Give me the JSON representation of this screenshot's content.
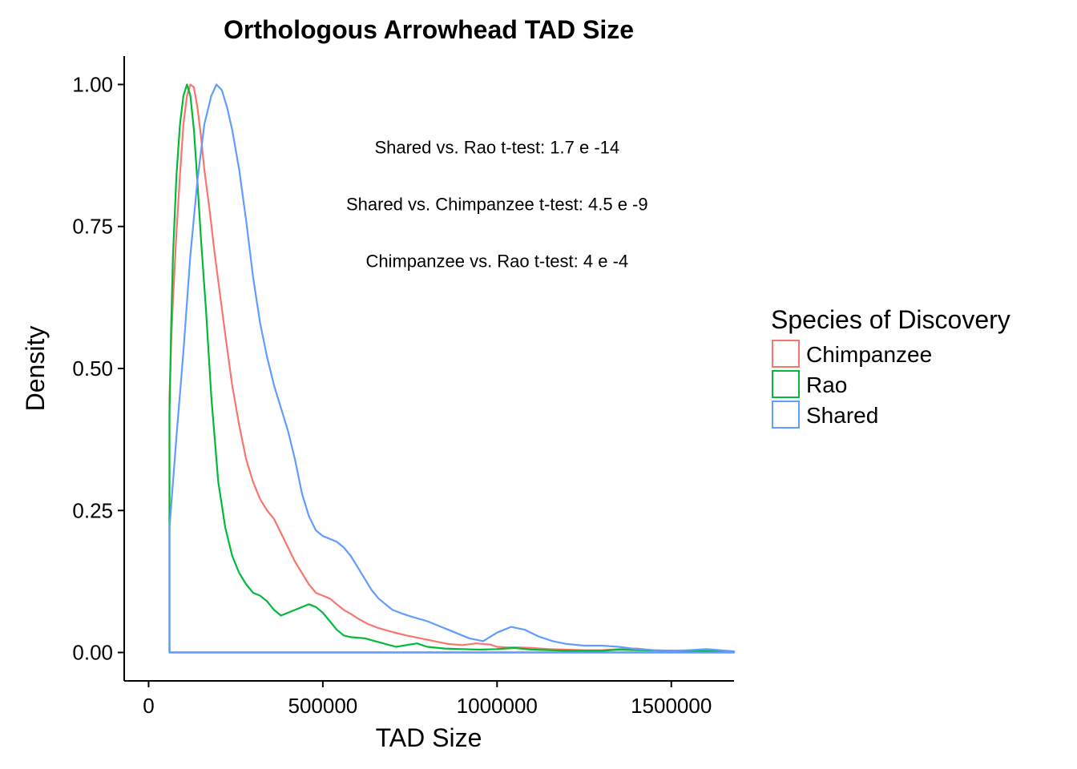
{
  "chart_data": {
    "type": "line",
    "title": "Orthologous Arrowhead TAD Size",
    "xlabel": "TAD Size",
    "ylabel": "Density",
    "xlim": [
      -70000,
      1680000
    ],
    "ylim": [
      -0.05,
      1.05
    ],
    "x_ticks": [
      0,
      500000,
      1000000,
      1500000
    ],
    "x_tick_labels": [
      "0",
      "500000",
      "1000000",
      "1500000"
    ],
    "y_ticks": [
      0,
      0.25,
      0.5,
      0.75,
      1.0
    ],
    "y_tick_labels": [
      "0.00",
      "0.25",
      "0.50",
      "0.75",
      "1.00"
    ],
    "grid": false,
    "legend": {
      "title": "Species of Discovery",
      "position": "right",
      "entries": [
        "Chimpanzee",
        "Rao",
        "Shared"
      ]
    },
    "annotations": [
      {
        "text": "Shared vs. Rao t-test: 1.7 e -14",
        "x": 1000000,
        "y": 0.89
      },
      {
        "text": "Shared vs. Chimpanzee t-test: 4.5 e -9",
        "x": 1000000,
        "y": 0.79
      },
      {
        "text": "Chimpanzee vs. Rao t-test: 4 e -4",
        "x": 1000000,
        "y": 0.69
      }
    ],
    "series": [
      {
        "name": "Chimpanzee",
        "color": "#F8766D",
        "x": [
          60000,
          65000,
          70000,
          80000,
          90000,
          100000,
          110000,
          120000,
          130000,
          140000,
          150000,
          160000,
          175000,
          190000,
          205000,
          220000,
          240000,
          260000,
          280000,
          300000,
          320000,
          340000,
          360000,
          380000,
          400000,
          420000,
          440000,
          460000,
          480000,
          500000,
          520000,
          540000,
          560000,
          580000,
          600000,
          630000,
          660000,
          700000,
          740000,
          780000,
          820000,
          860000,
          900000,
          940000,
          980000,
          1000000,
          1030000,
          1060000,
          1100000,
          1150000,
          1200000,
          1250000,
          1300000,
          1350000,
          1400000,
          1450000,
          1500000,
          1550000,
          1600000,
          1640000,
          1680000
        ],
        "y": [
          0.45,
          0.55,
          0.62,
          0.74,
          0.84,
          0.93,
          0.98,
          1.0,
          0.995,
          0.96,
          0.91,
          0.85,
          0.78,
          0.7,
          0.63,
          0.56,
          0.47,
          0.4,
          0.34,
          0.3,
          0.27,
          0.25,
          0.235,
          0.21,
          0.185,
          0.16,
          0.14,
          0.12,
          0.105,
          0.1,
          0.095,
          0.085,
          0.075,
          0.068,
          0.06,
          0.05,
          0.043,
          0.036,
          0.03,
          0.025,
          0.02,
          0.015,
          0.013,
          0.016,
          0.014,
          0.01,
          0.009,
          0.009,
          0.008,
          0.006,
          0.005,
          0.004,
          0.004,
          0.006,
          0.007,
          0.004,
          0.003,
          0.003,
          0.003,
          0.002,
          0.001
        ]
      },
      {
        "name": "Rao",
        "color": "#00BA38",
        "x": [
          60000,
          65000,
          70000,
          80000,
          90000,
          100000,
          110000,
          120000,
          130000,
          140000,
          150000,
          165000,
          180000,
          200000,
          220000,
          240000,
          260000,
          280000,
          300000,
          320000,
          340000,
          360000,
          380000,
          400000,
          420000,
          440000,
          460000,
          480000,
          500000,
          520000,
          540000,
          560000,
          580000,
          600000,
          620000,
          650000,
          680000,
          710000,
          740000,
          770000,
          800000,
          850000,
          900000,
          950000,
          1000000,
          1050000,
          1100000,
          1150000,
          1200000,
          1300000,
          1350000,
          1400000,
          1500000,
          1600000,
          1680000
        ],
        "y": [
          0.42,
          0.58,
          0.7,
          0.84,
          0.93,
          0.98,
          1.0,
          0.98,
          0.92,
          0.83,
          0.73,
          0.6,
          0.45,
          0.3,
          0.22,
          0.17,
          0.14,
          0.12,
          0.105,
          0.1,
          0.09,
          0.075,
          0.065,
          0.07,
          0.075,
          0.08,
          0.085,
          0.08,
          0.07,
          0.055,
          0.04,
          0.03,
          0.027,
          0.026,
          0.025,
          0.02,
          0.015,
          0.01,
          0.013,
          0.016,
          0.01,
          0.007,
          0.006,
          0.005,
          0.006,
          0.008,
          0.005,
          0.004,
          0.003,
          0.003,
          0.005,
          0.004,
          0.003,
          0.002,
          0.001
        ]
      },
      {
        "name": "Shared",
        "color": "#619CFF",
        "x": [
          60000,
          70000,
          80000,
          100000,
          120000,
          140000,
          160000,
          180000,
          195000,
          210000,
          225000,
          240000,
          260000,
          280000,
          300000,
          320000,
          340000,
          360000,
          380000,
          400000,
          420000,
          440000,
          460000,
          480000,
          500000,
          520000,
          540000,
          560000,
          580000,
          600000,
          620000,
          640000,
          660000,
          680000,
          700000,
          730000,
          760000,
          800000,
          840000,
          880000,
          920000,
          960000,
          1000000,
          1040000,
          1080000,
          1120000,
          1160000,
          1200000,
          1250000,
          1300000,
          1350000,
          1400000,
          1450000,
          1500000,
          1550000,
          1600000,
          1640000,
          1680000
        ],
        "y": [
          0.22,
          0.3,
          0.38,
          0.53,
          0.7,
          0.83,
          0.93,
          0.98,
          1.0,
          0.99,
          0.96,
          0.92,
          0.85,
          0.76,
          0.66,
          0.58,
          0.52,
          0.47,
          0.43,
          0.39,
          0.34,
          0.28,
          0.24,
          0.215,
          0.205,
          0.2,
          0.195,
          0.185,
          0.17,
          0.15,
          0.13,
          0.11,
          0.095,
          0.085,
          0.075,
          0.068,
          0.062,
          0.055,
          0.045,
          0.035,
          0.025,
          0.02,
          0.035,
          0.045,
          0.04,
          0.028,
          0.02,
          0.015,
          0.012,
          0.012,
          0.01,
          0.006,
          0.004,
          0.003,
          0.004,
          0.006,
          0.004,
          0.002
        ]
      }
    ]
  }
}
